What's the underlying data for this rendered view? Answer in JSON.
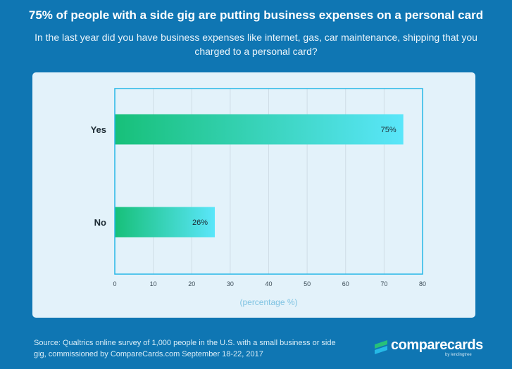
{
  "header": {
    "title": "75% of people with a side gig are putting business expenses on a personal card",
    "subtitle": "In the last year did you have business expenses like internet, gas, car maintenance, shipping that you charged to a personal card?"
  },
  "chart_data": {
    "type": "bar",
    "orientation": "horizontal",
    "categories": [
      "Yes",
      "No"
    ],
    "values": [
      75,
      26
    ],
    "data_labels": [
      "75%",
      "26%"
    ],
    "xlabel": "(percentage %)",
    "ylabel": "",
    "xlim": [
      0,
      80
    ],
    "xticks": [
      0,
      10,
      20,
      30,
      40,
      50,
      60,
      70,
      80
    ],
    "grid": true,
    "colors": {
      "bar_start": "#17c079",
      "bar_end": "#5ae6fa",
      "frame": "#26b8e8",
      "grid": "#cfdde6"
    }
  },
  "footer": {
    "source": "Source: Qualtrics online survey of 1,000 people in the U.S. with a small business or side gig, commissioned by CompareCards.com September 18-22, 2017"
  },
  "logo": {
    "name": "comparecards",
    "tagline": "by lendingtree"
  }
}
